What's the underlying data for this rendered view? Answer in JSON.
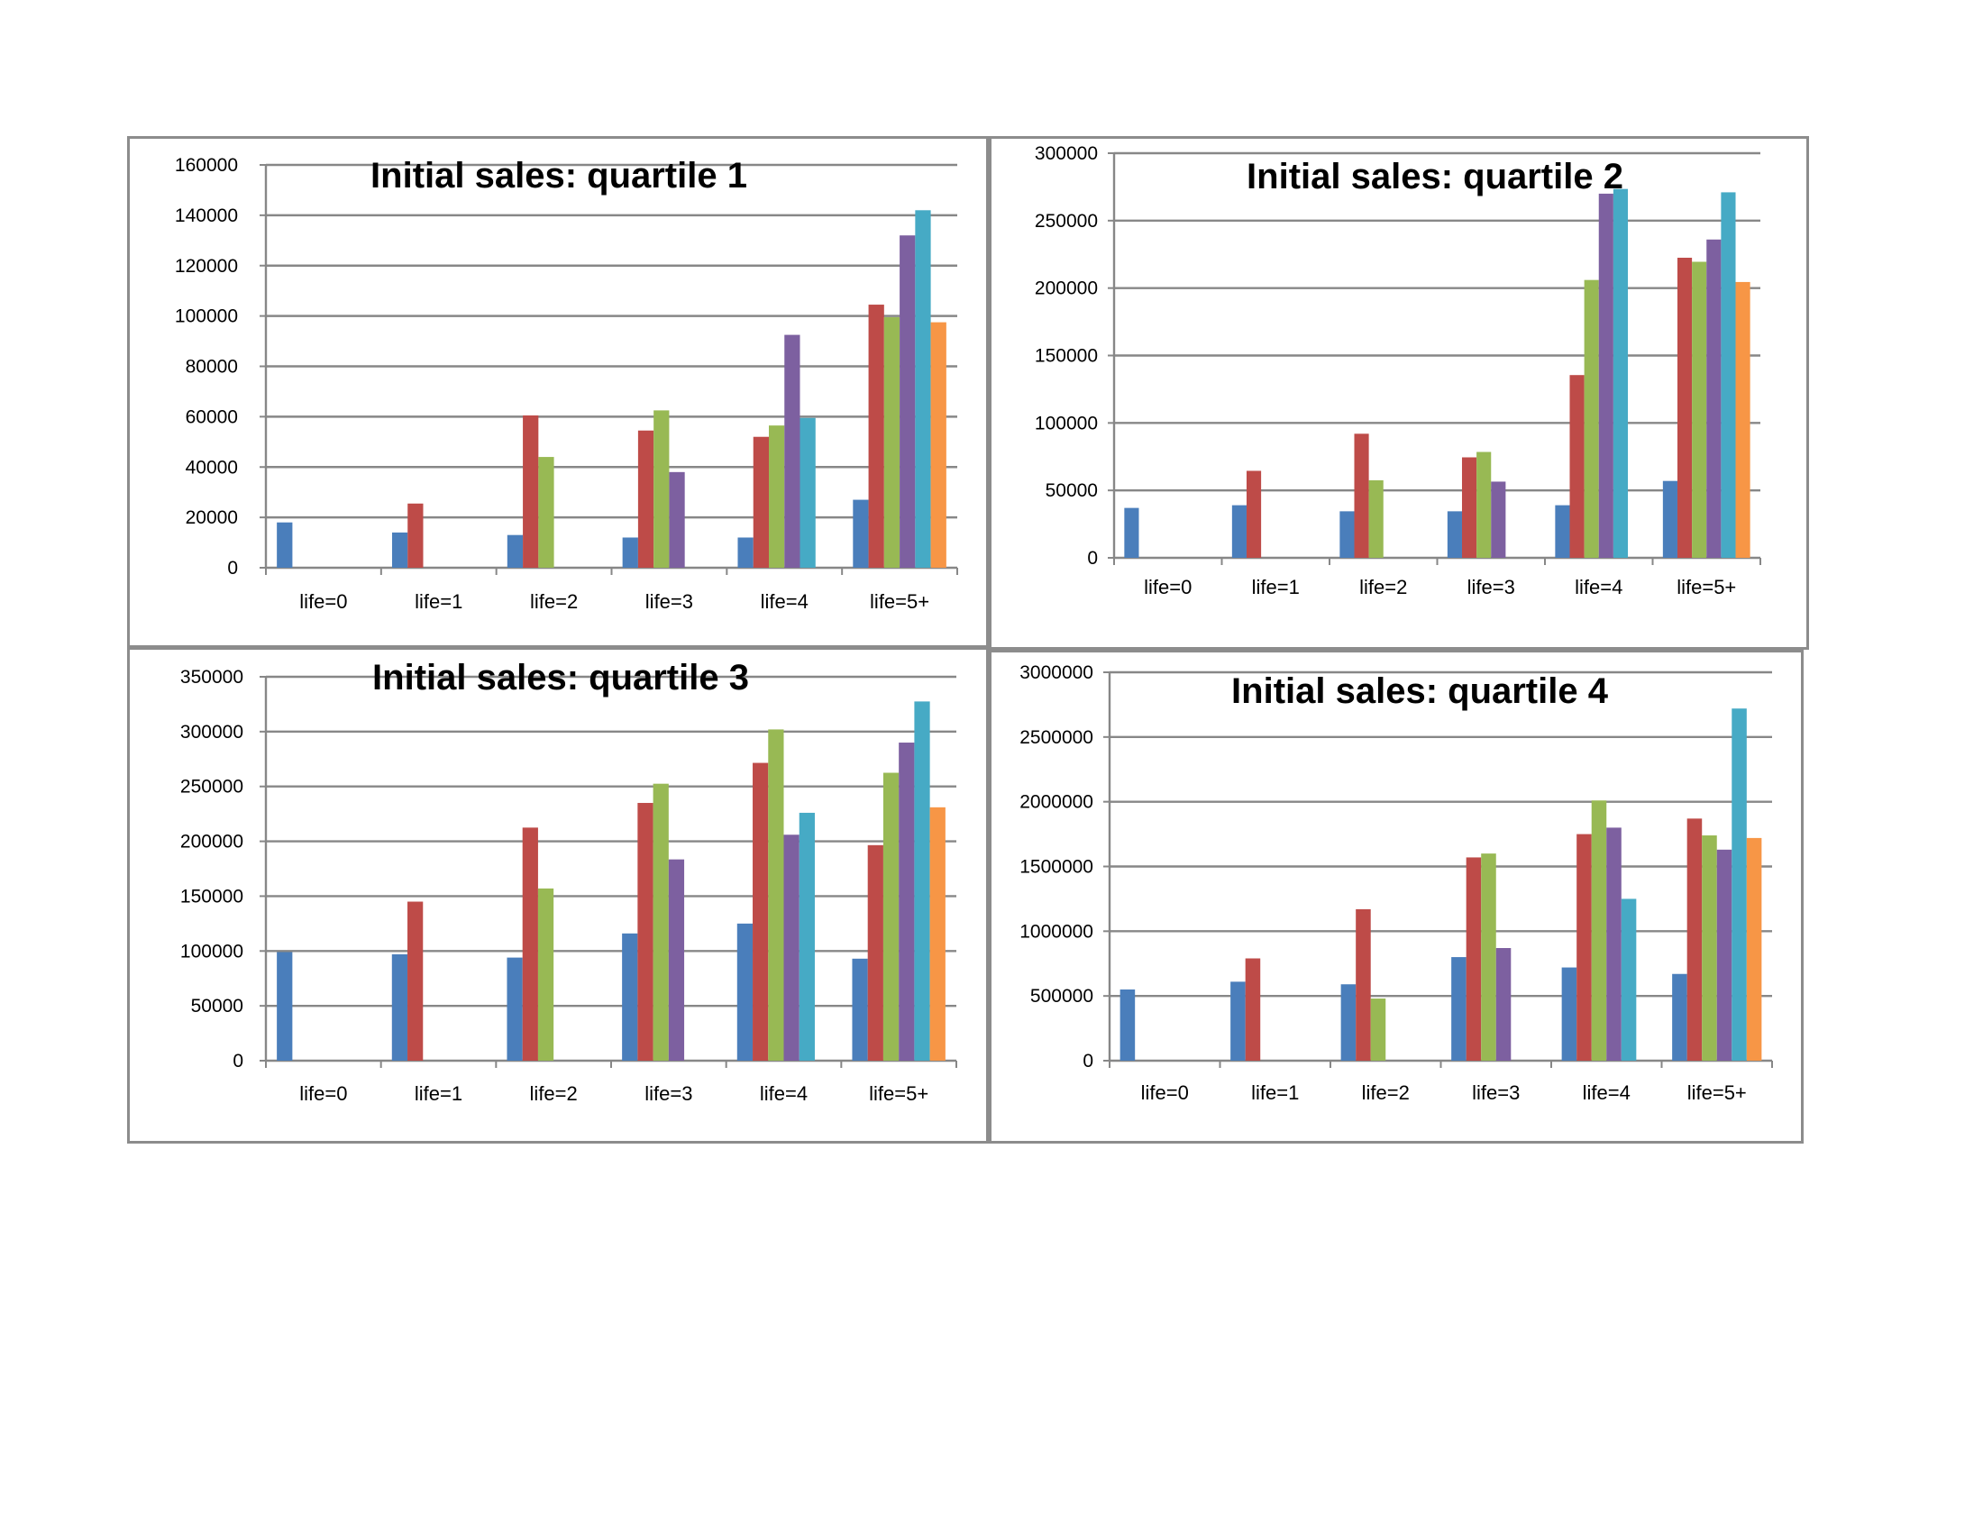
{
  "chart_data": [
    {
      "type": "bar",
      "title": "Initial sales: quartile 1",
      "categories": [
        "life=0",
        "life=1",
        "life=2",
        "life=3",
        "life=4",
        "life=5+"
      ],
      "ylim": [
        0,
        160000
      ],
      "yticks": [
        0,
        20000,
        40000,
        60000,
        80000,
        100000,
        120000,
        140000,
        160000
      ],
      "grid": true,
      "legend": "none",
      "series": [
        {
          "color": "#4a7ebb",
          "values": [
            18000,
            14000,
            13000,
            12000,
            12000,
            27000
          ]
        },
        {
          "color": "#be4b48",
          "values": [
            null,
            25500,
            60500,
            54500,
            52000,
            104500
          ]
        },
        {
          "color": "#98b954",
          "values": [
            null,
            null,
            44000,
            62500,
            56500,
            99500
          ]
        },
        {
          "color": "#7d60a0",
          "values": [
            null,
            null,
            null,
            38000,
            92500,
            132000
          ]
        },
        {
          "color": "#46aac5",
          "values": [
            null,
            null,
            null,
            null,
            59500,
            142000
          ]
        },
        {
          "color": "#f79646",
          "values": [
            null,
            null,
            null,
            null,
            null,
            97500
          ]
        }
      ]
    },
    {
      "type": "bar",
      "title": "Initial sales: quartile 2",
      "categories": [
        "life=0",
        "life=1",
        "life=2",
        "life=3",
        "life=4",
        "life=5+"
      ],
      "ylim": [
        0,
        300000
      ],
      "yticks": [
        0,
        50000,
        100000,
        150000,
        200000,
        250000,
        300000
      ],
      "grid": true,
      "legend": "none",
      "series": [
        {
          "color": "#4a7ebb",
          "values": [
            37000,
            39000,
            34500,
            34500,
            39000,
            57000
          ]
        },
        {
          "color": "#be4b48",
          "values": [
            null,
            64500,
            92000,
            74500,
            135500,
            222500
          ]
        },
        {
          "color": "#98b954",
          "values": [
            null,
            null,
            57500,
            78500,
            206000,
            219500
          ]
        },
        {
          "color": "#7d60a0",
          "values": [
            null,
            null,
            null,
            56500,
            270000,
            236000
          ]
        },
        {
          "color": "#46aac5",
          "values": [
            null,
            null,
            null,
            null,
            273500,
            271000
          ]
        },
        {
          "color": "#f79646",
          "values": [
            null,
            null,
            null,
            null,
            null,
            204500
          ]
        }
      ]
    },
    {
      "type": "bar",
      "title": "Initial sales: quartile 3",
      "categories": [
        "life=0",
        "life=1",
        "life=2",
        "life=3",
        "life=4",
        "life=5+"
      ],
      "ylim": [
        0,
        350000
      ],
      "yticks": [
        0,
        50000,
        100000,
        150000,
        200000,
        250000,
        300000,
        350000
      ],
      "grid": true,
      "legend": "none",
      "series": [
        {
          "color": "#4a7ebb",
          "values": [
            99000,
            97000,
            94000,
            116000,
            125000,
            93000
          ]
        },
        {
          "color": "#be4b48",
          "values": [
            null,
            145000,
            212500,
            235000,
            271500,
            196500
          ]
        },
        {
          "color": "#98b954",
          "values": [
            null,
            null,
            157000,
            252500,
            302000,
            262500
          ]
        },
        {
          "color": "#7d60a0",
          "values": [
            null,
            null,
            null,
            183500,
            206000,
            290000
          ]
        },
        {
          "color": "#46aac5",
          "values": [
            null,
            null,
            null,
            null,
            226000,
            327500
          ]
        },
        {
          "color": "#f79646",
          "values": [
            null,
            null,
            null,
            null,
            null,
            231000
          ]
        }
      ]
    },
    {
      "type": "bar",
      "title": "Initial sales: quartile 4",
      "categories": [
        "life=0",
        "life=1",
        "life=2",
        "life=3",
        "life=4",
        "life=5+"
      ],
      "ylim": [
        0,
        3000000
      ],
      "yticks": [
        0,
        500000,
        1000000,
        1500000,
        2000000,
        2500000,
        3000000
      ],
      "grid": true,
      "legend": "none",
      "series": [
        {
          "color": "#4a7ebb",
          "values": [
            550000,
            610000,
            590000,
            800000,
            720000,
            670000
          ]
        },
        {
          "color": "#be4b48",
          "values": [
            null,
            790000,
            1170000,
            1570000,
            1750000,
            1870000
          ]
        },
        {
          "color": "#98b954",
          "values": [
            null,
            null,
            480000,
            1600000,
            2010000,
            1740000
          ]
        },
        {
          "color": "#7d60a0",
          "values": [
            null,
            null,
            null,
            870000,
            1800000,
            1630000
          ]
        },
        {
          "color": "#46aac5",
          "values": [
            null,
            null,
            null,
            null,
            1250000,
            2720000
          ]
        },
        {
          "color": "#f79646",
          "values": [
            null,
            null,
            null,
            null,
            null,
            1720000
          ]
        }
      ]
    }
  ]
}
